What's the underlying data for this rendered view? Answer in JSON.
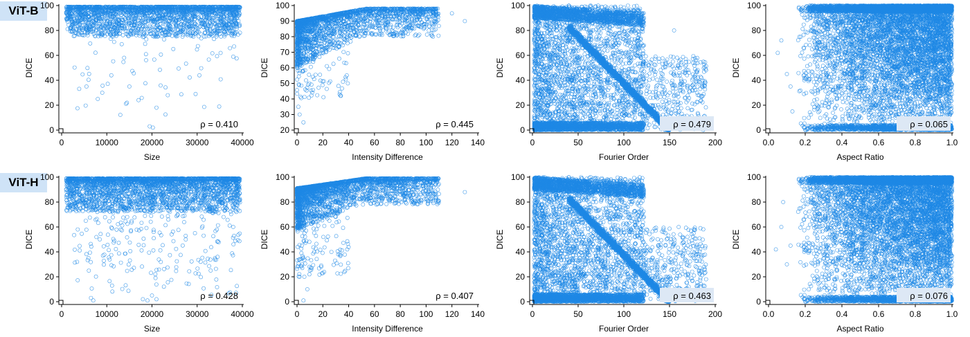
{
  "rows": [
    {
      "label": "ViT-B"
    },
    {
      "label": "ViT-H"
    }
  ],
  "chart_data": [
    {
      "type": "scatter",
      "row": 0,
      "xlabel": "Size",
      "ylabel": "DICE",
      "xlim": [
        0,
        40000
      ],
      "ylim": [
        0,
        100
      ],
      "xticks": [
        0,
        10000,
        20000,
        30000,
        40000
      ],
      "yticks": [
        0,
        20,
        40,
        60,
        80,
        100
      ],
      "annotation": "ρ = 0.410",
      "annotation_highlight": false,
      "pattern": {
        "kind": "size",
        "n_dense": 2200,
        "n_sparse": 70,
        "dense_y_range": [
          75,
          99
        ]
      },
      "points": [
        [
          8000,
          25
        ],
        [
          19500,
          3
        ],
        [
          20200,
          2
        ],
        [
          21000,
          18
        ],
        [
          23500,
          28
        ],
        [
          30500,
          44
        ],
        [
          11000,
          44
        ],
        [
          5500,
          35
        ],
        [
          9000,
          30
        ],
        [
          15000,
          35
        ]
      ]
    },
    {
      "type": "scatter",
      "row": 0,
      "xlabel": "Intensity Difference",
      "ylabel": "DICE",
      "xlim": [
        0,
        140
      ],
      "ylim": [
        20,
        100
      ],
      "xticks": [
        0,
        20,
        40,
        60,
        80,
        100,
        120,
        140
      ],
      "yticks": [
        20,
        30,
        40,
        50,
        60,
        70,
        80,
        90,
        100
      ],
      "annotation": "ρ = 0.445",
      "annotation_highlight": false,
      "pattern": {
        "kind": "intensity",
        "n_dense": 2000,
        "n_sparse": 120,
        "dense_y_range": [
          80,
          98
        ]
      },
      "points": [
        [
          1,
          35
        ],
        [
          2,
          30
        ],
        [
          5,
          25
        ],
        [
          33,
          43
        ],
        [
          34,
          42
        ],
        [
          130,
          90
        ],
        [
          120,
          95
        ]
      ]
    },
    {
      "type": "scatter",
      "row": 0,
      "xlabel": "Fourier Order",
      "ylabel": "DICE",
      "xlim": [
        0,
        200
      ],
      "ylim": [
        0,
        100
      ],
      "xticks": [
        0,
        50,
        100,
        150,
        200
      ],
      "yticks": [
        0,
        20,
        40,
        60,
        80,
        100
      ],
      "annotation": "ρ = 0.479",
      "annotation_highlight": true,
      "pattern": {
        "kind": "fourier",
        "n_dense": 5000,
        "n_sparse": 1500
      },
      "points": [
        [
          155,
          80
        ],
        [
          190,
          48
        ],
        [
          185,
          42
        ],
        [
          175,
          36
        ]
      ]
    },
    {
      "type": "scatter",
      "row": 0,
      "xlabel": "Aspect Ratio",
      "ylabel": "DICE",
      "xlim": [
        0,
        1
      ],
      "ylim": [
        0,
        100
      ],
      "xticks": [
        0,
        0.2,
        0.4,
        0.6,
        0.8,
        1.0
      ],
      "xticklabels": [
        "0.0",
        "0.2",
        "0.4",
        "0.6",
        "0.8",
        "1.0"
      ],
      "yticks": [
        0,
        20,
        40,
        60,
        80,
        100
      ],
      "annotation": "ρ = 0.065",
      "annotation_highlight": true,
      "pattern": {
        "kind": "aspect",
        "n_dense": 9000
      },
      "points": [
        [
          0.05,
          62
        ],
        [
          0.07,
          72
        ],
        [
          0.1,
          45
        ],
        [
          0.12,
          35
        ],
        [
          0.13,
          15
        ]
      ]
    },
    {
      "type": "scatter",
      "row": 1,
      "xlabel": "Size",
      "ylabel": "DICE",
      "xlim": [
        0,
        40000
      ],
      "ylim": [
        0,
        100
      ],
      "xticks": [
        0,
        10000,
        20000,
        30000,
        40000
      ],
      "yticks": [
        0,
        20,
        40,
        60,
        80,
        100
      ],
      "annotation": "ρ = 0.428",
      "annotation_highlight": false,
      "pattern": {
        "kind": "size",
        "n_dense": 2600,
        "n_sparse": 260,
        "dense_y_range": [
          72,
          99
        ]
      },
      "points": [
        [
          6500,
          3
        ],
        [
          7000,
          1
        ],
        [
          18000,
          2
        ],
        [
          19000,
          1
        ],
        [
          20000,
          5
        ],
        [
          21000,
          2
        ],
        [
          33000,
          25
        ],
        [
          38000,
          60
        ]
      ]
    },
    {
      "type": "scatter",
      "row": 1,
      "xlabel": "Intensity Difference",
      "ylabel": "DICE",
      "xlim": [
        0,
        140
      ],
      "ylim": [
        0,
        100
      ],
      "xticks": [
        0,
        20,
        40,
        60,
        80,
        100,
        120,
        140
      ],
      "yticks": [
        0,
        20,
        40,
        60,
        80,
        100
      ],
      "annotation": "ρ = 0.407",
      "annotation_highlight": false,
      "pattern": {
        "kind": "intensity",
        "n_dense": 2300,
        "n_sparse": 150,
        "dense_y_range": [
          78,
          99
        ]
      },
      "points": [
        [
          5,
          1
        ],
        [
          8,
          10
        ],
        [
          2,
          20
        ],
        [
          10,
          25
        ],
        [
          20,
          23
        ],
        [
          33,
          38
        ],
        [
          130,
          88
        ]
      ]
    },
    {
      "type": "scatter",
      "row": 1,
      "xlabel": "Fourier Order",
      "ylabel": "DICE",
      "xlim": [
        0,
        200
      ],
      "ylim": [
        0,
        100
      ],
      "xticks": [
        0,
        50,
        100,
        150,
        200
      ],
      "yticks": [
        0,
        20,
        40,
        60,
        80,
        100
      ],
      "annotation": "ρ = 0.463",
      "annotation_highlight": true,
      "pattern": {
        "kind": "fourier",
        "n_dense": 5200,
        "n_sparse": 1600
      },
      "points": [
        [
          190,
          18
        ],
        [
          180,
          40
        ],
        [
          170,
          45
        ],
        [
          160,
          60
        ]
      ]
    },
    {
      "type": "scatter",
      "row": 1,
      "xlabel": "Aspect Ratio",
      "ylabel": "DICE",
      "xlim": [
        0,
        1
      ],
      "ylim": [
        0,
        100
      ],
      "xticks": [
        0,
        0.2,
        0.4,
        0.6,
        0.8,
        1.0
      ],
      "xticklabels": [
        "0.0",
        "0.2",
        "0.4",
        "0.6",
        "0.8",
        "1.0"
      ],
      "yticks": [
        0,
        20,
        40,
        60,
        80,
        100
      ],
      "annotation": "ρ = 0.076",
      "annotation_highlight": true,
      "pattern": {
        "kind": "aspect",
        "n_dense": 9500
      },
      "points": [
        [
          0.04,
          42
        ],
        [
          0.07,
          60
        ],
        [
          0.08,
          80
        ],
        [
          0.1,
          30
        ],
        [
          0.12,
          45
        ]
      ]
    }
  ],
  "style": {
    "marker_color": "#1e88e5",
    "annotation_highlight_color": "#dde8f5",
    "axis_color": "#000000",
    "row_label_bg": "#cfe3f7"
  }
}
